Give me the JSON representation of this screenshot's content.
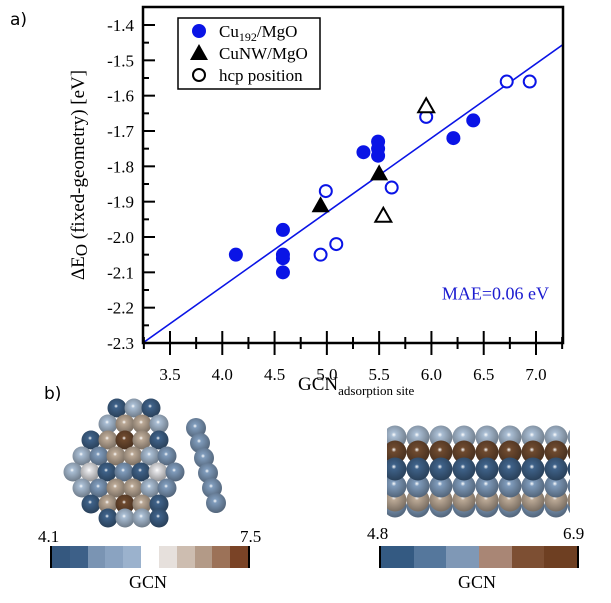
{
  "panel_a_label": "a)",
  "panel_b_label": "b)",
  "chart_data": {
    "type": "scatter",
    "title": "",
    "xlabel": "GCN",
    "xlabel_sub": "adsorption site",
    "ylabel": "ΔE",
    "ylabel_sub": "O",
    "ylabel_rest": " (fixed-geometry) [eV]",
    "xlim": [
      3.24,
      7.26
    ],
    "ylim": [
      -2.3,
      -1.35
    ],
    "x_ticks": [
      "3.5",
      "4.0",
      "4.5",
      "5.0",
      "5.5",
      "6.0",
      "6.5",
      "7.0"
    ],
    "y_ticks": [
      "-1.4",
      "-1.5",
      "-1.6",
      "-1.7",
      "-1.8",
      "-1.9",
      "-2.0",
      "-2.1",
      "-2.2",
      "-2.3"
    ],
    "grid": false,
    "legend_position": "top-left",
    "legend": [
      {
        "label": "Cu",
        "sub": "192",
        "rest": "/MgO",
        "marker": "filled-circle",
        "color": "#0a14e6"
      },
      {
        "label": "CuNW/MgO",
        "sub": "",
        "rest": "",
        "marker": "filled-triangle",
        "color": "#000000"
      },
      {
        "label": "hcp position",
        "sub": "",
        "rest": "",
        "marker": "open-circle",
        "color": "#000000"
      }
    ],
    "series": [
      {
        "name": "Cu192/MgO",
        "marker": "filled-circle",
        "color": "#0a14e6",
        "points": [
          [
            4.13,
            -2.05
          ],
          [
            4.58,
            -1.98
          ],
          [
            4.58,
            -2.05
          ],
          [
            4.58,
            -2.06
          ],
          [
            4.58,
            -2.1
          ],
          [
            5.35,
            -1.76
          ],
          [
            5.49,
            -1.73
          ],
          [
            5.49,
            -1.75
          ],
          [
            5.49,
            -1.77
          ],
          [
            6.21,
            -1.72
          ],
          [
            6.4,
            -1.67
          ]
        ]
      },
      {
        "name": "Cu192/MgO hcp position",
        "marker": "open-circle",
        "color": "#0a14e6",
        "points": [
          [
            4.94,
            -2.05
          ],
          [
            5.09,
            -2.02
          ],
          [
            4.99,
            -1.87
          ],
          [
            5.62,
            -1.86
          ],
          [
            5.95,
            -1.66
          ],
          [
            6.72,
            -1.56
          ],
          [
            6.94,
            -1.56
          ]
        ]
      },
      {
        "name": "CuNW/MgO",
        "marker": "filled-triangle",
        "color": "#000000",
        "points": [
          [
            4.94,
            -1.91
          ],
          [
            5.5,
            -1.82
          ]
        ]
      },
      {
        "name": "CuNW/MgO hcp position",
        "marker": "open-triangle",
        "color": "#000000",
        "points": [
          [
            5.95,
            -1.63
          ],
          [
            5.54,
            -1.94
          ]
        ]
      }
    ],
    "fit_line": {
      "color": "#0a14e6",
      "points": [
        [
          3.24,
          -2.3
        ],
        [
          7.26,
          -1.455
        ]
      ]
    },
    "annotation": {
      "text": "MAE=0.06 eV",
      "color": "#1a1ad0",
      "x": 6.1,
      "y": -2.16
    }
  },
  "colorbars": [
    {
      "id": "nanoparticle",
      "min": "4.1",
      "max": "7.5",
      "title": "GCN",
      "colors": [
        "#35587f",
        "#3d6088",
        "#7a94b3",
        "#8aa3c1",
        "#9bb2cd",
        "#ffffff",
        "#e6e0dc",
        "#cdbdb0",
        "#b39a87",
        "#9c7258",
        "#7a4326"
      ]
    },
    {
      "id": "nanowire",
      "min": "4.8",
      "max": "6.9",
      "title": "GCN",
      "colors": [
        "#345a82",
        "#55779c",
        "#7f98b6",
        "#a98675",
        "#7d4f33",
        "#6e3f22"
      ]
    }
  ]
}
